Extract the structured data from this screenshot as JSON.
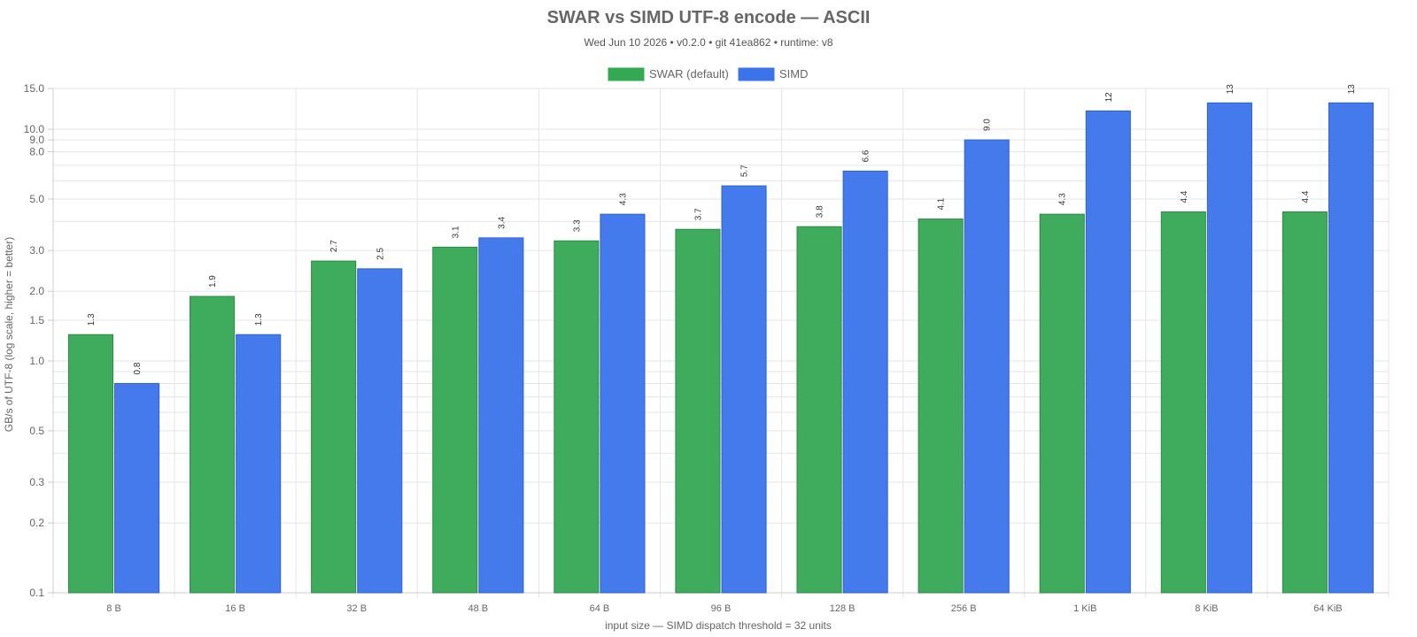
{
  "chart_data": {
    "type": "bar",
    "title": "SWAR vs SIMD UTF-8 encode — ASCII",
    "subtitle": "Wed Jun 10 2026 • v0.2.0 • git 41ea862 • runtime: v8",
    "xlabel": "input size — SIMD dispatch threshold = 32 units",
    "ylabel": "GB/s of UTF-8 (log scale, higher = better)",
    "yscale": "log",
    "ylim": [
      0.1,
      15
    ],
    "yticks": [
      "0.1",
      "0.2",
      "0.3",
      "0.5",
      "1.0",
      "1.5",
      "2.0",
      "3.0",
      "5.0",
      "8.0",
      "9.0",
      "10.0",
      "15.0"
    ],
    "grid": true,
    "legend_position": "top-center",
    "categories": [
      "8 B",
      "16 B",
      "32 B",
      "48 B",
      "64 B",
      "96 B",
      "128 B",
      "256 B",
      "1 KiB",
      "8 KiB",
      "64 KiB"
    ],
    "series": [
      {
        "name": "SWAR (default)",
        "color": "#34a853",
        "values": [
          1.3,
          1.9,
          2.7,
          3.1,
          3.3,
          3.7,
          3.8,
          4.1,
          4.3,
          4.4,
          4.4
        ],
        "labels": [
          "1.3",
          "1.9",
          "2.7",
          "3.1",
          "3.3",
          "3.7",
          "3.8",
          "4.1",
          "4.3",
          "4.4",
          "4.4"
        ]
      },
      {
        "name": "SIMD",
        "color": "#3b73eb",
        "values": [
          0.8,
          1.3,
          2.5,
          3.4,
          4.3,
          5.7,
          6.6,
          9.0,
          12,
          13,
          13
        ],
        "labels": [
          "0.8",
          "1.3",
          "2.5",
          "3.4",
          "4.3",
          "5.7",
          "6.6",
          "9.0",
          "12",
          "13",
          "13"
        ]
      }
    ]
  }
}
